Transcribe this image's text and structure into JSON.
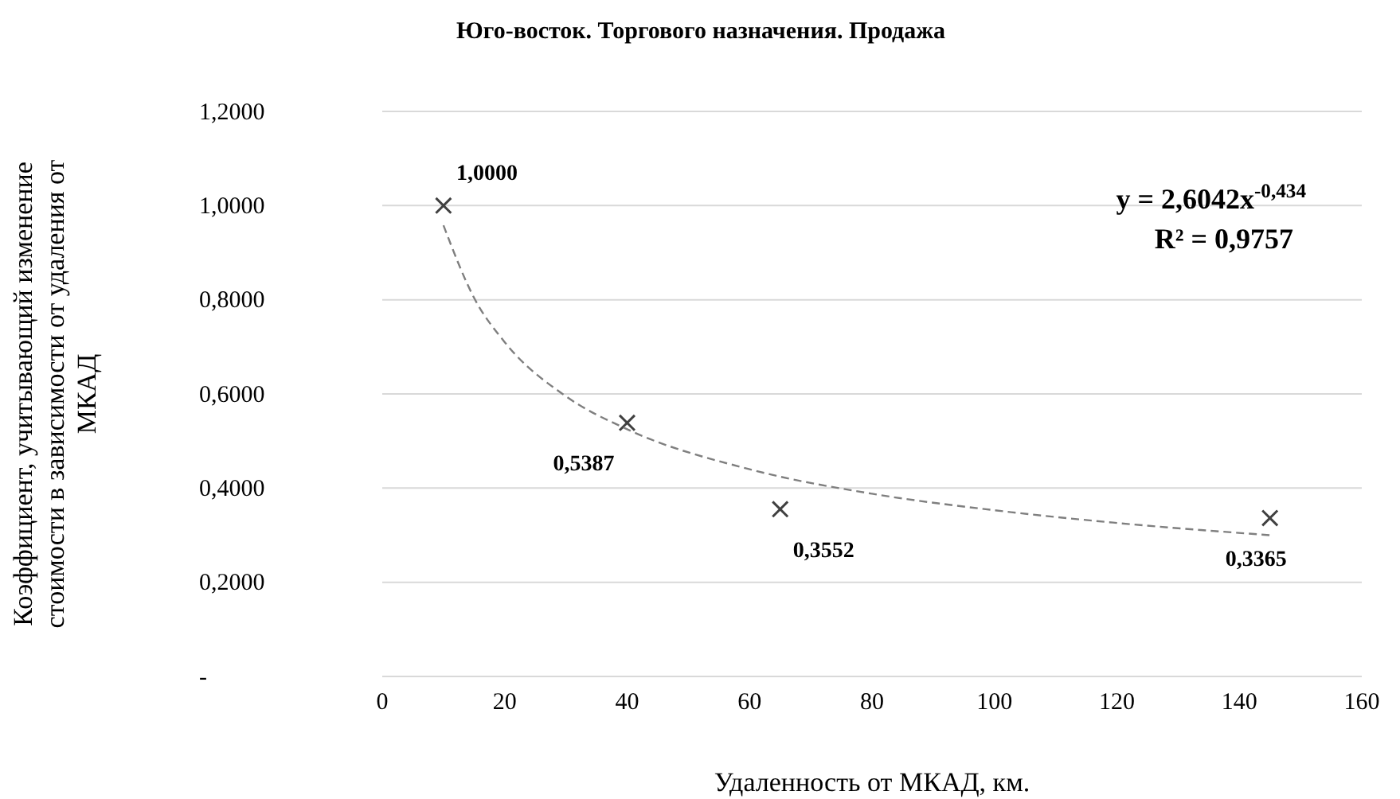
{
  "chart_data": {
    "type": "scatter",
    "title": "Юго-восток. Торгового назначения. Продажа",
    "xlabel": "Удаленность от МКАД, км.",
    "ylabel": "Коэффициент, учитывающий изменение стоимости в зависимости от удаления от МКАД",
    "xlim": [
      0,
      160
    ],
    "xticks": [
      0,
      20,
      40,
      60,
      80,
      100,
      120,
      140,
      160
    ],
    "ylim": [
      0,
      1.2
    ],
    "yticks": [
      {
        "value": 0,
        "label": "-"
      },
      {
        "value": 0.2,
        "label": "0,2000"
      },
      {
        "value": 0.4,
        "label": "0,4000"
      },
      {
        "value": 0.6,
        "label": "0,6000"
      },
      {
        "value": 0.8,
        "label": "0,8000"
      },
      {
        "value": 1,
        "label": "1,0000"
      },
      {
        "value": 1.2,
        "label": "1,2000"
      }
    ],
    "grid": "y",
    "series": [
      {
        "marker": "cross",
        "color": "#404040",
        "x": [
          10,
          40,
          65,
          145
        ],
        "values": [
          1.0,
          0.5387,
          0.3552,
          0.3365
        ],
        "value_labels": [
          "1,0000",
          "0,5387",
          "0,3552",
          "0,3365"
        ]
      },
      {
        "type": "line",
        "color": "#7f7f7f",
        "line_style": "dashed",
        "x": [
          10,
          15,
          20,
          30,
          40,
          60,
          80,
          100,
          120,
          145
        ],
        "values": [
          0.958,
          0.804,
          0.71,
          0.595,
          0.525,
          0.44,
          0.388,
          0.353,
          0.326,
          0.3
        ]
      }
    ],
    "annotations": [
      "y = 2,6042x$^{-0,434}$",
      "R² = 0,9757"
    ]
  }
}
